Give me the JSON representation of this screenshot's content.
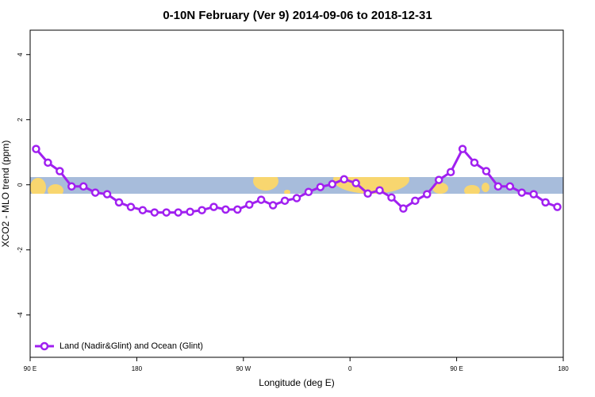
{
  "chart_data": {
    "type": "line",
    "title": "0-10N February (Ver 9)   2014-09-06 to 2018-12-31",
    "xlabel": "Longitude (deg E)",
    "ylabel": "XCO2 - MLO trend (ppm)",
    "x": [
      95,
      105,
      115,
      125,
      135,
      145,
      155,
      165,
      175,
      185,
      195,
      205,
      215,
      225,
      235,
      245,
      255,
      265,
      275,
      285,
      295,
      305,
      315,
      325,
      335,
      345,
      355,
      365,
      375,
      385,
      395,
      405,
      415,
      425,
      435,
      445,
      455,
      465,
      475,
      485,
      495,
      505,
      515,
      525,
      535
    ],
    "series": [
      {
        "name": "Land (Nadir&Glint) and Ocean (Glint)",
        "color": "#a020f0",
        "values": [
          1.1,
          0.68,
          0.42,
          -0.05,
          -0.05,
          -0.24,
          -0.29,
          -0.54,
          -0.68,
          -0.78,
          -0.85,
          -0.85,
          -0.85,
          -0.83,
          -0.78,
          -0.68,
          -0.76,
          -0.76,
          -0.61,
          -0.46,
          -0.63,
          -0.49,
          -0.41,
          -0.22,
          -0.07,
          0.02,
          0.17,
          0.05,
          -0.27,
          -0.17,
          -0.39,
          -0.73,
          -0.49,
          -0.29,
          0.15,
          0.39,
          1.1,
          0.68,
          0.42,
          -0.05,
          -0.05,
          -0.24,
          -0.29,
          -0.54,
          -0.68
        ]
      }
    ],
    "xlim": [
      90,
      540
    ],
    "xticks": [
      {
        "value": 90,
        "label": "90 E"
      },
      180,
      {
        "value": 270,
        "label": "90 W"
      },
      {
        "value": 360,
        "label": "0"
      },
      {
        "value": 450,
        "label": "90 E"
      },
      {
        "value": 540,
        "label": "180"
      }
    ],
    "ylim": [
      -5.3,
      4.75
    ],
    "yticks": [
      -4,
      -2,
      0,
      2,
      4
    ],
    "legend": "lower left"
  }
}
